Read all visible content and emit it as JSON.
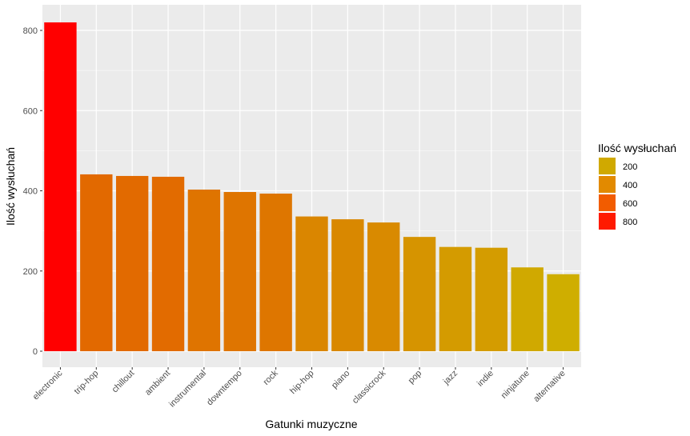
{
  "chart_data": {
    "type": "bar",
    "categories": [
      "electronic",
      "trip-hop",
      "chillout",
      "ambient",
      "instrumental",
      "downtempo",
      "rock",
      "hip-hop",
      "piano",
      "classicrock",
      "pop",
      "jazz",
      "indie",
      "ninjatune",
      "alternative"
    ],
    "values": [
      820,
      441,
      437,
      435,
      403,
      397,
      393,
      336,
      329,
      321,
      285,
      260,
      258,
      209,
      192
    ],
    "xlabel": "Gatunki muzyczne",
    "ylabel": "Ilość wysłuchań",
    "ylim": [
      0,
      850
    ],
    "yticks": [
      0,
      200,
      400,
      600,
      800
    ],
    "grid": true,
    "legend": {
      "title": "Ilość wysłuchań",
      "placement": "right",
      "items": [
        {
          "label": "200",
          "color": "#d0a900"
        },
        {
          "label": "400",
          "color": "#e28a00"
        },
        {
          "label": "600",
          "color": "#f25c00"
        },
        {
          "label": "800",
          "color": "#ff1a00"
        }
      ]
    },
    "colors": {
      "low": "#cfae00",
      "high": "#ff0000",
      "panel": "#ebebeb",
      "grid": "#ffffff"
    }
  }
}
